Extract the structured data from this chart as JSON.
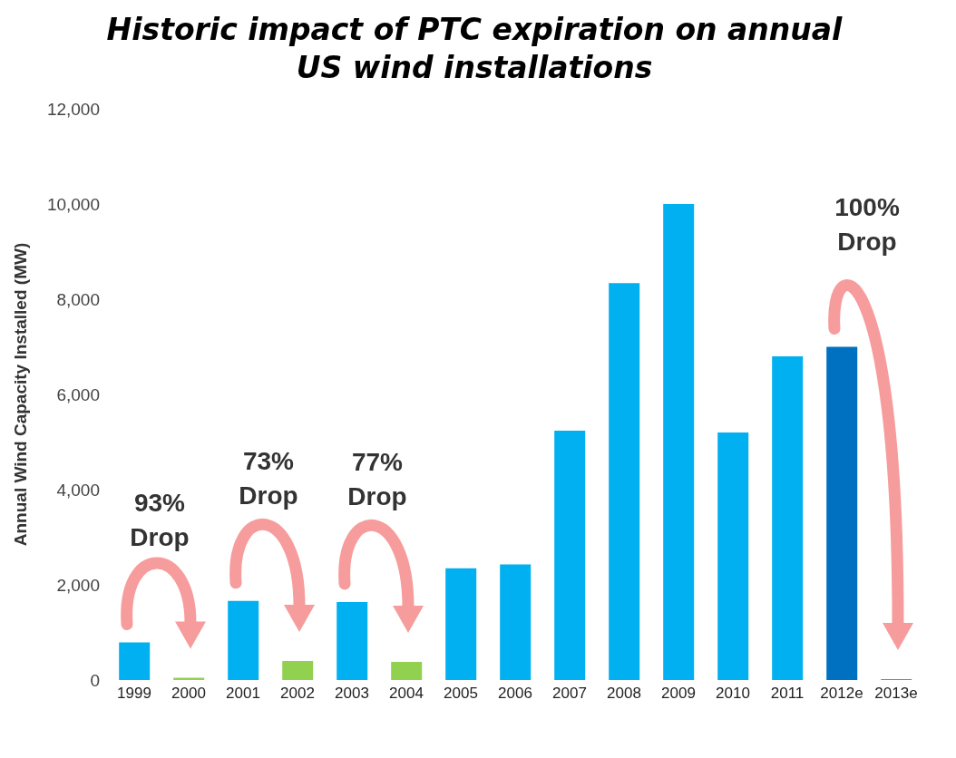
{
  "chart_data": {
    "type": "bar",
    "title": "Historic impact of PTC expiration on annual US wind installations",
    "ylabel": "Annual Wind Capacity Installed (MW)",
    "categories": [
      "1999",
      "2000",
      "2001",
      "2002",
      "2003",
      "2004",
      "2005",
      "2006",
      "2007",
      "2008",
      "2009",
      "2010",
      "2011",
      "2012e",
      "2013e"
    ],
    "values": [
      790,
      50,
      1660,
      400,
      1640,
      380,
      2350,
      2430,
      5240,
      8340,
      10000,
      5200,
      6800,
      7000,
      20
    ],
    "colors": [
      "#00b0f0",
      "#92d050",
      "#00b0f0",
      "#92d050",
      "#00b0f0",
      "#92d050",
      "#00b0f0",
      "#00b0f0",
      "#00b0f0",
      "#00b0f0",
      "#00b0f0",
      "#00b0f0",
      "#00b0f0",
      "#0070c0",
      "#00b0f0"
    ],
    "ylim": [
      0,
      12000
    ],
    "yticks": [
      0,
      {
        "value": 2000,
        "label": "2,000"
      },
      {
        "value": 4000,
        "label": "4,000"
      },
      {
        "value": 6000,
        "label": "6,000"
      },
      {
        "value": 8000,
        "label": "8,000"
      },
      {
        "value": 10000,
        "label": "10,000"
      },
      {
        "value": 12000,
        "label": "12,000"
      }
    ],
    "annotations": [
      "93% Drop",
      "73% Drop",
      "77% Drop",
      "100% Drop"
    ],
    "grid": false,
    "legend": false
  }
}
